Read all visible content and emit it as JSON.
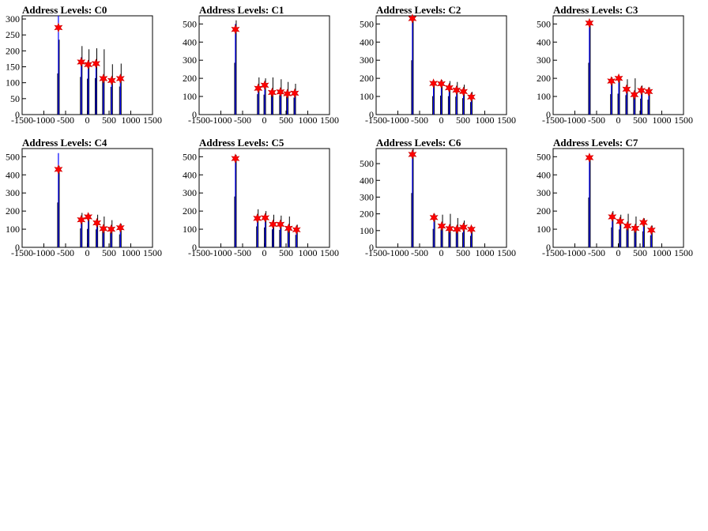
{
  "chart_data": [
    {
      "type": "histogram",
      "title": "Address Levels: C0",
      "xlim": [
        -1500,
        1500
      ],
      "ylim": [
        0,
        310
      ],
      "yticks": [
        0,
        50,
        100,
        150,
        200,
        250,
        300
      ],
      "xticks": [
        -1500,
        -1000,
        -500,
        0,
        500,
        1000,
        1500
      ],
      "black_peaks": [
        {
          "x": -665,
          "y": 235
        },
        {
          "x": -140,
          "y": 215
        },
        {
          "x": 20,
          "y": 205
        },
        {
          "x": 200,
          "y": 208
        },
        {
          "x": 370,
          "y": 205
        },
        {
          "x": 560,
          "y": 158
        },
        {
          "x": 760,
          "y": 160
        }
      ],
      "blue_peaks": [
        {
          "x": -665,
          "y": 310
        },
        {
          "x": -140,
          "y": 180
        },
        {
          "x": 20,
          "y": 170
        },
        {
          "x": 200,
          "y": 150
        },
        {
          "x": 370,
          "y": 125
        },
        {
          "x": 560,
          "y": 110
        },
        {
          "x": 760,
          "y": 118
        }
      ],
      "stars": [
        {
          "x": -665,
          "y": 273
        },
        {
          "x": -140,
          "y": 165
        },
        {
          "x": 20,
          "y": 157
        },
        {
          "x": 200,
          "y": 160
        },
        {
          "x": 370,
          "y": 113
        },
        {
          "x": 560,
          "y": 107
        },
        {
          "x": 760,
          "y": 113
        }
      ]
    },
    {
      "type": "histogram",
      "title": "Address Levels: C1",
      "xlim": [
        -1500,
        1500
      ],
      "ylim": [
        0,
        545
      ],
      "yticks": [
        0,
        100,
        200,
        300,
        400,
        500
      ],
      "xticks": [
        -1500,
        -1000,
        -500,
        0,
        500,
        1000,
        1500
      ],
      "black_peaks": [
        {
          "x": -665,
          "y": 520
        },
        {
          "x": -140,
          "y": 205
        },
        {
          "x": 10,
          "y": 200
        },
        {
          "x": 180,
          "y": 205
        },
        {
          "x": 370,
          "y": 195
        },
        {
          "x": 530,
          "y": 180
        },
        {
          "x": 700,
          "y": 170
        }
      ],
      "blue_peaks": [
        {
          "x": -665,
          "y": 500
        },
        {
          "x": -140,
          "y": 160
        },
        {
          "x": 10,
          "y": 180
        },
        {
          "x": 180,
          "y": 140
        },
        {
          "x": 370,
          "y": 140
        },
        {
          "x": 530,
          "y": 130
        },
        {
          "x": 700,
          "y": 130
        }
      ],
      "stars": [
        {
          "x": -665,
          "y": 470
        },
        {
          "x": -140,
          "y": 145
        },
        {
          "x": 10,
          "y": 162
        },
        {
          "x": 180,
          "y": 122
        },
        {
          "x": 370,
          "y": 125
        },
        {
          "x": 530,
          "y": 115
        },
        {
          "x": 700,
          "y": 118
        }
      ]
    },
    {
      "type": "histogram",
      "title": "Address Levels: C2",
      "xlim": [
        -1500,
        1500
      ],
      "ylim": [
        0,
        545
      ],
      "yticks": [
        0,
        100,
        200,
        300,
        400,
        500
      ],
      "xticks": [
        -1500,
        -1000,
        -500,
        0,
        500,
        1000,
        1500
      ],
      "black_peaks": [
        {
          "x": -665,
          "y": 545
        },
        {
          "x": -180,
          "y": 185
        },
        {
          "x": 0,
          "y": 190
        },
        {
          "x": 180,
          "y": 185
        },
        {
          "x": 350,
          "y": 180
        },
        {
          "x": 510,
          "y": 165
        },
        {
          "x": 690,
          "y": 125
        }
      ],
      "blue_peaks": [
        {
          "x": -665,
          "y": 545
        },
        {
          "x": -180,
          "y": 175
        },
        {
          "x": 0,
          "y": 175
        },
        {
          "x": 180,
          "y": 150
        },
        {
          "x": 350,
          "y": 140
        },
        {
          "x": 510,
          "y": 130
        },
        {
          "x": 690,
          "y": 105
        }
      ],
      "stars": [
        {
          "x": -665,
          "y": 530
        },
        {
          "x": -180,
          "y": 172
        },
        {
          "x": 0,
          "y": 170
        },
        {
          "x": 180,
          "y": 148
        },
        {
          "x": 350,
          "y": 135
        },
        {
          "x": 510,
          "y": 127
        },
        {
          "x": 690,
          "y": 97
        }
      ]
    },
    {
      "type": "histogram",
      "title": "Address Levels: C3",
      "xlim": [
        -1500,
        1500
      ],
      "ylim": [
        0,
        545
      ],
      "yticks": [
        0,
        100,
        200,
        300,
        400,
        500
      ],
      "xticks": [
        -1500,
        -1000,
        -500,
        0,
        500,
        1000,
        1500
      ],
      "black_peaks": [
        {
          "x": -665,
          "y": 520
        },
        {
          "x": -160,
          "y": 205
        },
        {
          "x": 10,
          "y": 210
        },
        {
          "x": 190,
          "y": 195
        },
        {
          "x": 370,
          "y": 200
        },
        {
          "x": 530,
          "y": 160
        },
        {
          "x": 700,
          "y": 150
        }
      ],
      "blue_peaks": [
        {
          "x": -665,
          "y": 515
        },
        {
          "x": -160,
          "y": 190
        },
        {
          "x": 10,
          "y": 200
        },
        {
          "x": 190,
          "y": 140
        },
        {
          "x": 370,
          "y": 130
        },
        {
          "x": 530,
          "y": 140
        },
        {
          "x": 700,
          "y": 140
        }
      ],
      "stars": [
        {
          "x": -665,
          "y": 505
        },
        {
          "x": -160,
          "y": 185
        },
        {
          "x": 10,
          "y": 200
        },
        {
          "x": 190,
          "y": 140
        },
        {
          "x": 370,
          "y": 110
        },
        {
          "x": 530,
          "y": 133
        },
        {
          "x": 700,
          "y": 127
        }
      ]
    },
    {
      "type": "histogram",
      "title": "Address Levels: C4",
      "xlim": [
        -1500,
        1500
      ],
      "ylim": [
        0,
        545
      ],
      "yticks": [
        0,
        100,
        200,
        300,
        400,
        500
      ],
      "xticks": [
        -1500,
        -1000,
        -500,
        0,
        500,
        1000,
        1500
      ],
      "black_peaks": [
        {
          "x": -665,
          "y": 450
        },
        {
          "x": -140,
          "y": 190
        },
        {
          "x": 20,
          "y": 185
        },
        {
          "x": 220,
          "y": 180
        },
        {
          "x": 370,
          "y": 170
        },
        {
          "x": 550,
          "y": 150
        },
        {
          "x": 760,
          "y": 130
        }
      ],
      "blue_peaks": [
        {
          "x": -665,
          "y": 520
        },
        {
          "x": -140,
          "y": 165
        },
        {
          "x": 20,
          "y": 175
        },
        {
          "x": 220,
          "y": 150
        },
        {
          "x": 370,
          "y": 110
        },
        {
          "x": 550,
          "y": 110
        },
        {
          "x": 760,
          "y": 120
        }
      ],
      "stars": [
        {
          "x": -665,
          "y": 430
        },
        {
          "x": -140,
          "y": 152
        },
        {
          "x": 20,
          "y": 168
        },
        {
          "x": 220,
          "y": 135
        },
        {
          "x": 370,
          "y": 103
        },
        {
          "x": 550,
          "y": 100
        },
        {
          "x": 760,
          "y": 108
        }
      ]
    },
    {
      "type": "histogram",
      "title": "Address Levels: C5",
      "xlim": [
        -1500,
        1500
      ],
      "ylim": [
        0,
        545
      ],
      "yticks": [
        0,
        100,
        200,
        300,
        400,
        500
      ],
      "xticks": [
        -1500,
        -1000,
        -500,
        0,
        500,
        1000,
        1500
      ],
      "black_peaks": [
        {
          "x": -665,
          "y": 510
        },
        {
          "x": -160,
          "y": 210
        },
        {
          "x": 20,
          "y": 200
        },
        {
          "x": 200,
          "y": 180
        },
        {
          "x": 370,
          "y": 175
        },
        {
          "x": 560,
          "y": 170
        },
        {
          "x": 740,
          "y": 125
        }
      ],
      "blue_peaks": [
        {
          "x": -665,
          "y": 500
        },
        {
          "x": -160,
          "y": 170
        },
        {
          "x": 20,
          "y": 175
        },
        {
          "x": 200,
          "y": 135
        },
        {
          "x": 370,
          "y": 140
        },
        {
          "x": 560,
          "y": 115
        },
        {
          "x": 740,
          "y": 105
        }
      ],
      "stars": [
        {
          "x": -665,
          "y": 490
        },
        {
          "x": -160,
          "y": 160
        },
        {
          "x": 20,
          "y": 163
        },
        {
          "x": 200,
          "y": 127
        },
        {
          "x": 370,
          "y": 127
        },
        {
          "x": 560,
          "y": 105
        },
        {
          "x": 740,
          "y": 97
        }
      ]
    },
    {
      "type": "histogram",
      "title": "Address Levels: C6",
      "xlim": [
        -1500,
        1500
      ],
      "ylim": [
        0,
        590
      ],
      "yticks": [
        0,
        100,
        200,
        300,
        400,
        500
      ],
      "xticks": [
        -1500,
        -1000,
        -500,
        0,
        500,
        1000,
        1500
      ],
      "black_peaks": [
        {
          "x": -665,
          "y": 590
        },
        {
          "x": -170,
          "y": 200
        },
        {
          "x": 10,
          "y": 195
        },
        {
          "x": 190,
          "y": 200
        },
        {
          "x": 360,
          "y": 175
        },
        {
          "x": 510,
          "y": 160
        },
        {
          "x": 690,
          "y": 125
        }
      ],
      "blue_peaks": [
        {
          "x": -665,
          "y": 580
        },
        {
          "x": -170,
          "y": 185
        },
        {
          "x": 10,
          "y": 140
        },
        {
          "x": 190,
          "y": 130
        },
        {
          "x": 360,
          "y": 120
        },
        {
          "x": 510,
          "y": 130
        },
        {
          "x": 690,
          "y": 115
        }
      ],
      "stars": [
        {
          "x": -665,
          "y": 555
        },
        {
          "x": -170,
          "y": 178
        },
        {
          "x": 10,
          "y": 127
        },
        {
          "x": 190,
          "y": 112
        },
        {
          "x": 360,
          "y": 108
        },
        {
          "x": 510,
          "y": 120
        },
        {
          "x": 690,
          "y": 108
        }
      ]
    },
    {
      "type": "histogram",
      "title": "Address Levels: C7",
      "xlim": [
        -1500,
        1500
      ],
      "ylim": [
        0,
        545
      ],
      "yticks": [
        0,
        100,
        200,
        300,
        400,
        500
      ],
      "xticks": [
        -1500,
        -1000,
        -500,
        0,
        500,
        1000,
        1500
      ],
      "black_peaks": [
        {
          "x": -665,
          "y": 500
        },
        {
          "x": -140,
          "y": 200
        },
        {
          "x": 40,
          "y": 180
        },
        {
          "x": 210,
          "y": 185
        },
        {
          "x": 390,
          "y": 170
        },
        {
          "x": 580,
          "y": 160
        },
        {
          "x": 760,
          "y": 120
        }
      ],
      "blue_peaks": [
        {
          "x": -665,
          "y": 500
        },
        {
          "x": -140,
          "y": 180
        },
        {
          "x": 40,
          "y": 150
        },
        {
          "x": 210,
          "y": 135
        },
        {
          "x": 390,
          "y": 120
        },
        {
          "x": 580,
          "y": 150
        },
        {
          "x": 760,
          "y": 105
        }
      ],
      "stars": [
        {
          "x": -665,
          "y": 495
        },
        {
          "x": -140,
          "y": 168
        },
        {
          "x": 40,
          "y": 143
        },
        {
          "x": 210,
          "y": 118
        },
        {
          "x": 390,
          "y": 105
        },
        {
          "x": 580,
          "y": 137
        },
        {
          "x": 760,
          "y": 95
        }
      ]
    }
  ]
}
